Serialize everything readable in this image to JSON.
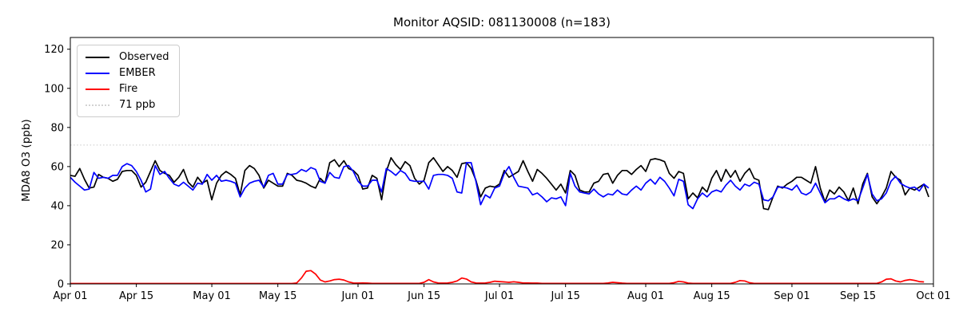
{
  "chart_data": {
    "type": "line",
    "title": "Monitor AQSID: 081130008 (n=183)",
    "xlabel": "",
    "ylabel": "MDA8 O3 (ppb)",
    "ylim": [
      0,
      126
    ],
    "yticks": [
      0,
      20,
      40,
      60,
      80,
      100,
      120
    ],
    "x_axis_unit": "days since Apr 01",
    "x_end_day": 183,
    "xticks": [
      {
        "day": 0,
        "label": "Apr 01"
      },
      {
        "day": 14,
        "label": "Apr 15"
      },
      {
        "day": 30,
        "label": "May 01"
      },
      {
        "day": 44,
        "label": "May 15"
      },
      {
        "day": 61,
        "label": "Jun 01"
      },
      {
        "day": 75,
        "label": "Jun 15"
      },
      {
        "day": 91,
        "label": "Jul 01"
      },
      {
        "day": 105,
        "label": "Jul 15"
      },
      {
        "day": 122,
        "label": "Aug 01"
      },
      {
        "day": 136,
        "label": "Aug 15"
      },
      {
        "day": 153,
        "label": "Sep 01"
      },
      {
        "day": 167,
        "label": "Sep 15"
      },
      {
        "day": 183,
        "label": "Oct 01"
      }
    ],
    "grid": false,
    "legend_position": "upper left",
    "threshold": {
      "label": "71 ppb",
      "value": 71,
      "color": "#d3d3d3",
      "style": "dotted"
    },
    "series": [
      {
        "name": "Observed",
        "color": "#000000",
        "values": [
          55.5,
          55,
          59,
          53.5,
          49,
          49.5,
          56,
          54.5,
          54,
          52.5,
          53.5,
          57.5,
          58,
          58,
          55.5,
          49.5,
          52,
          57.5,
          63,
          58,
          56.5,
          55.5,
          52,
          54.5,
          58.5,
          52,
          49.5,
          54.5,
          51.5,
          53,
          43,
          51.5,
          55.5,
          57.5,
          56,
          54,
          45.5,
          58,
          60.5,
          59,
          55.5,
          49,
          53,
          51.5,
          50,
          50,
          56.5,
          55.5,
          53,
          52.5,
          51.5,
          50,
          49,
          54,
          51.5,
          62,
          63.5,
          60,
          63,
          59,
          58,
          55.5,
          48.5,
          49,
          55.5,
          54,
          43,
          57.5,
          64.5,
          61,
          58.5,
          62.5,
          60.5,
          54,
          51,
          53,
          62,
          64.5,
          61,
          57.5,
          60,
          58,
          54.5,
          61.5,
          62,
          59,
          53,
          44.5,
          49,
          50,
          49.5,
          51,
          58,
          54.5,
          56,
          57.5,
          63,
          57.5,
          52.5,
          58.5,
          56.5,
          54,
          51,
          48,
          51,
          46.5,
          58,
          55.5,
          48,
          47,
          47,
          51.5,
          52.5,
          56,
          56.5,
          51.5,
          55.5,
          58,
          58,
          56,
          58.5,
          60.5,
          57.5,
          63.5,
          64,
          63.5,
          62.5,
          56.5,
          54,
          57.5,
          56.5,
          43.5,
          46.5,
          44,
          49.5,
          47,
          54,
          58,
          52.5,
          58.5,
          54.5,
          58,
          52.5,
          56.5,
          59,
          54,
          53,
          38.5,
          38,
          44.5,
          50,
          49,
          51,
          52.5,
          54.5,
          54.5,
          53,
          51.5,
          60,
          49,
          42,
          48,
          46,
          49.5,
          47,
          42.5,
          49,
          41,
          51,
          56.5,
          44.5,
          41,
          44.5,
          49,
          57.5,
          54.5,
          53,
          45.5,
          49,
          48,
          49.5,
          51,
          44.5
        ]
      },
      {
        "name": "EMBER",
        "color": "#0000ff",
        "values": [
          54.5,
          52,
          50,
          48,
          48.5,
          57,
          54,
          54.5,
          54,
          55.5,
          55.5,
          60,
          61.5,
          60.5,
          57.5,
          53,
          47,
          48.5,
          60.5,
          56,
          57.5,
          54,
          51,
          50,
          52,
          50,
          48,
          51.5,
          51,
          56,
          53,
          55.5,
          52.5,
          53,
          52.5,
          51.5,
          44.5,
          49,
          51.5,
          52.5,
          53,
          49.5,
          55.5,
          56.5,
          51,
          51,
          56,
          56,
          56.5,
          58.5,
          57.5,
          59.5,
          58.5,
          52.5,
          51.5,
          57,
          54.5,
          54,
          60,
          60.5,
          57.5,
          52.5,
          50,
          50,
          53,
          53,
          47,
          59,
          57.5,
          55.5,
          58,
          56.5,
          53,
          52.5,
          52.5,
          52.5,
          48.5,
          55.5,
          56,
          56,
          55.5,
          54,
          47,
          46.5,
          62,
          62,
          52.5,
          40.5,
          45.5,
          44,
          49,
          50,
          56.5,
          60,
          54.5,
          50,
          49.5,
          49,
          45.5,
          46.5,
          44.5,
          42,
          44,
          43.5,
          44.5,
          40,
          56.5,
          50,
          47,
          46.5,
          46,
          48.5,
          46,
          44.5,
          46,
          45.5,
          48,
          46,
          45.5,
          48,
          50,
          48,
          51.5,
          53.5,
          51,
          54.5,
          52.5,
          49,
          45,
          53.5,
          52.5,
          40.5,
          38.5,
          43.5,
          46.5,
          44.5,
          47,
          48,
          47,
          50.5,
          53,
          50,
          48,
          51,
          50,
          52,
          51,
          43,
          42.5,
          44.5,
          49.5,
          49.5,
          49,
          48,
          50.5,
          46.5,
          45.5,
          47,
          51.5,
          46.5,
          41.5,
          43.5,
          43.5,
          45,
          43.5,
          42.5,
          43.5,
          42.5,
          49,
          56,
          46,
          42.5,
          43.5,
          46.5,
          52.5,
          55,
          51.5,
          50,
          49,
          49.5,
          47.5,
          51,
          49
        ]
      },
      {
        "name": "Fire",
        "color": "#ff0000",
        "values": [
          0.2,
          0.2,
          0.2,
          0.2,
          0.2,
          0.2,
          0.2,
          0.2,
          0.2,
          0.2,
          0.2,
          0.2,
          0.2,
          0.2,
          0.2,
          0.2,
          0.2,
          0.2,
          0.2,
          0.2,
          0.2,
          0.2,
          0.2,
          0.2,
          0.2,
          0.2,
          0.2,
          0.2,
          0.2,
          0.2,
          0.2,
          0.2,
          0.2,
          0.2,
          0.2,
          0.2,
          0.2,
          0.2,
          0.2,
          0.2,
          0.2,
          0.2,
          0.2,
          0.2,
          0.2,
          0.2,
          0.2,
          0.2,
          0.5,
          3,
          6.5,
          6.8,
          5,
          2,
          1,
          1.5,
          2.2,
          2.4,
          2,
          1,
          0.5,
          0.4,
          0.5,
          0.4,
          0.3,
          0.3,
          0.3,
          0.3,
          0.3,
          0.3,
          0.3,
          0.3,
          0.3,
          0.3,
          0.3,
          0.8,
          2.2,
          1,
          0.5,
          0.4,
          0.5,
          0.8,
          1.5,
          3,
          2.5,
          1,
          0.5,
          0.4,
          0.5,
          0.8,
          1.4,
          1.2,
          1,
          0.8,
          1.1,
          0.8,
          0.5,
          0.5,
          0.4,
          0.4,
          0.3,
          0.3,
          0.3,
          0.3,
          0.3,
          0.3,
          0.3,
          0.3,
          0.3,
          0.3,
          0.3,
          0.3,
          0.3,
          0.3,
          0.5,
          0.8,
          0.6,
          0.4,
          0.3,
          0.3,
          0.3,
          0.3,
          0.3,
          0.3,
          0.3,
          0.3,
          0.3,
          0.3,
          0.6,
          1.3,
          1,
          0.4,
          0.3,
          0.3,
          0.3,
          0.3,
          0.3,
          0.3,
          0.3,
          0.3,
          0.3,
          0.8,
          1.7,
          1.5,
          0.6,
          0.3,
          0.3,
          0.3,
          0.3,
          0.3,
          0.3,
          0.3,
          0.3,
          0.3,
          0.3,
          0.3,
          0.3,
          0.3,
          0.3,
          0.3,
          0.3,
          0.3,
          0.3,
          0.3,
          0.3,
          0.3,
          0.3,
          0.3,
          0.3,
          0.3,
          0.3,
          0.3,
          1,
          2.4,
          2.6,
          1.5,
          1,
          1.8,
          2.2,
          1.8,
          1.2,
          1
        ]
      }
    ]
  }
}
